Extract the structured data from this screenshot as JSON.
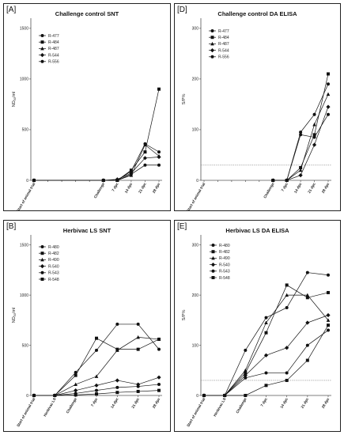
{
  "chart_data": [
    {
      "id": "pA",
      "type": "line",
      "panel_label": "[A]",
      "title": "Challenge control SNT",
      "ylabel": "ND50/ml",
      "ylabel_main": "ND",
      "ylabel_sub": "50",
      "ylabel_tail": "/ml",
      "categories": [
        "Start of animal trial",
        "",
        "",
        "",
        "",
        "Challenge",
        "7 dpc",
        "14 dpc",
        "21 dpc",
        "28 dpc"
      ],
      "ylim": [
        0,
        1600
      ],
      "yticks": [
        0,
        500,
        1000,
        1500
      ],
      "cutoff": null,
      "series": [
        {
          "name": "R-477",
          "marker": "circle",
          "values": [
            0,
            null,
            null,
            null,
            null,
            0,
            0,
            60,
            150,
            150
          ]
        },
        {
          "name": "R-484",
          "marker": "square",
          "values": [
            0,
            null,
            null,
            null,
            null,
            0,
            0,
            100,
            280,
            900
          ]
        },
        {
          "name": "R-487",
          "marker": "triangle",
          "values": [
            0,
            null,
            null,
            null,
            null,
            0,
            0,
            50,
            350,
            240
          ]
        },
        {
          "name": "R-544",
          "marker": "diamond",
          "values": [
            0,
            null,
            null,
            null,
            null,
            0,
            10,
            70,
            220,
            230
          ]
        },
        {
          "name": "R-556",
          "marker": "circle",
          "values": [
            0,
            null,
            null,
            null,
            null,
            0,
            0,
            90,
            360,
            280
          ]
        }
      ]
    },
    {
      "id": "pD",
      "type": "line",
      "panel_label": "[D]",
      "title": "Challenge control DA ELISA",
      "ylabel": "S/P%",
      "ylabel_main": "S/P%",
      "ylabel_sub": "",
      "ylabel_tail": "",
      "categories": [
        "Start of animal trial",
        "",
        "",
        "",
        "",
        "Challenge",
        "7 dpc",
        "14 dpc",
        "21 dpc",
        "28 dpc"
      ],
      "ylim": [
        0,
        320
      ],
      "yticks": [
        0,
        100,
        200,
        300
      ],
      "cutoff": 30,
      "series": [
        {
          "name": "R-477",
          "marker": "circle",
          "values": [
            null,
            null,
            null,
            null,
            null,
            0,
            0,
            95,
            130,
            190
          ]
        },
        {
          "name": "R-484",
          "marker": "square",
          "values": [
            null,
            null,
            null,
            null,
            null,
            0,
            0,
            25,
            90,
            210
          ]
        },
        {
          "name": "R-487",
          "marker": "triangle",
          "values": [
            null,
            null,
            null,
            null,
            null,
            0,
            0,
            20,
            110,
            170
          ]
        },
        {
          "name": "R-544",
          "marker": "diamond",
          "values": [
            null,
            null,
            null,
            null,
            null,
            0,
            0,
            10,
            70,
            145
          ]
        },
        {
          "name": "R-556",
          "marker": "circle",
          "values": [
            null,
            null,
            null,
            null,
            null,
            0,
            0,
            90,
            85,
            130
          ]
        }
      ]
    },
    {
      "id": "pB",
      "type": "line",
      "panel_label": "[B]",
      "title": "Herbivac LS SNT",
      "ylabel": "ND50/ml",
      "ylabel_main": "ND",
      "ylabel_sub": "50",
      "ylabel_tail": "/ml",
      "categories": [
        "Start of animal trial",
        "Herbivac LS",
        "Challenge",
        "7 dpc",
        "14 dpc",
        "21 dpc",
        "28 dpc"
      ],
      "ylim": [
        0,
        1600
      ],
      "yticks": [
        0,
        500,
        1000,
        1500
      ],
      "cutoff": null,
      "series": [
        {
          "name": "R-480",
          "marker": "circle",
          "values": [
            0,
            0,
            230,
            450,
            710,
            710,
            460
          ]
        },
        {
          "name": "R-482",
          "marker": "square",
          "values": [
            0,
            0,
            200,
            570,
            460,
            460,
            560
          ]
        },
        {
          "name": "R-490",
          "marker": "triangle",
          "values": [
            0,
            0,
            110,
            190,
            450,
            580,
            560
          ]
        },
        {
          "name": "R-540",
          "marker": "diamond",
          "values": [
            0,
            0,
            50,
            100,
            150,
            110,
            180
          ]
        },
        {
          "name": "R-543",
          "marker": "circle",
          "values": [
            0,
            0,
            20,
            50,
            80,
            90,
            110
          ]
        },
        {
          "name": "R-548",
          "marker": "square",
          "values": [
            0,
            0,
            5,
            15,
            30,
            40,
            50
          ]
        }
      ]
    },
    {
      "id": "pE",
      "type": "line",
      "panel_label": "[E]",
      "title": "Herbivac LS DA ELISA",
      "ylabel": "S/P%",
      "ylabel_main": "S/P%",
      "ylabel_sub": "",
      "ylabel_tail": "",
      "categories": [
        "Start of animal trial",
        "Herbivac LS",
        "Challenge",
        "7 dpc",
        "14 dpc",
        "21 dpc",
        "28 dpc"
      ],
      "ylim": [
        0,
        320
      ],
      "yticks": [
        0,
        100,
        200,
        300
      ],
      "cutoff": 30,
      "series": [
        {
          "name": "R-480",
          "marker": "circle",
          "values": [
            0,
            0,
            90,
            155,
            175,
            245,
            240
          ]
        },
        {
          "name": "R-482",
          "marker": "square",
          "values": [
            0,
            0,
            45,
            125,
            220,
            195,
            205
          ]
        },
        {
          "name": "R-490",
          "marker": "triangle",
          "values": [
            0,
            0,
            50,
            145,
            200,
            200,
            150
          ]
        },
        {
          "name": "R-540",
          "marker": "diamond",
          "values": [
            0,
            0,
            40,
            80,
            95,
            145,
            160
          ]
        },
        {
          "name": "R-543",
          "marker": "circle",
          "values": [
            0,
            0,
            35,
            45,
            45,
            100,
            130
          ]
        },
        {
          "name": "R-548",
          "marker": "square",
          "values": [
            0,
            0,
            0,
            20,
            30,
            70,
            140
          ]
        }
      ]
    }
  ]
}
